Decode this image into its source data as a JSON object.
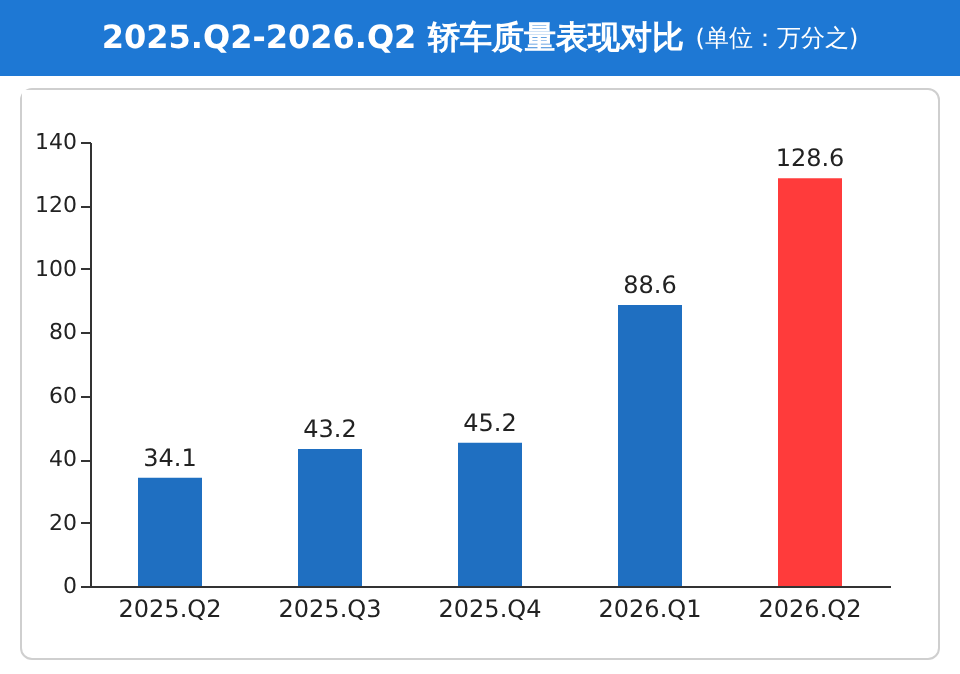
{
  "chart_data": {
    "type": "bar",
    "title": "2025.Q2-2026.Q2 轿车质量表现对比",
    "subtitle": "(单位：万分之)",
    "categories": [
      "2025.Q2",
      "2025.Q3",
      "2025.Q4",
      "2026.Q1",
      "2026.Q2"
    ],
    "values": [
      34.1,
      43.2,
      45.2,
      88.6,
      128.6
    ],
    "colors": [
      "#1f6fc1",
      "#1f6fc1",
      "#1f6fc1",
      "#1f6fc1",
      "#ff3b3b"
    ],
    "ylim": [
      0,
      140
    ],
    "yticks": [
      0,
      20,
      40,
      60,
      80,
      100,
      120,
      140
    ],
    "grid": false,
    "data_labels": true
  }
}
